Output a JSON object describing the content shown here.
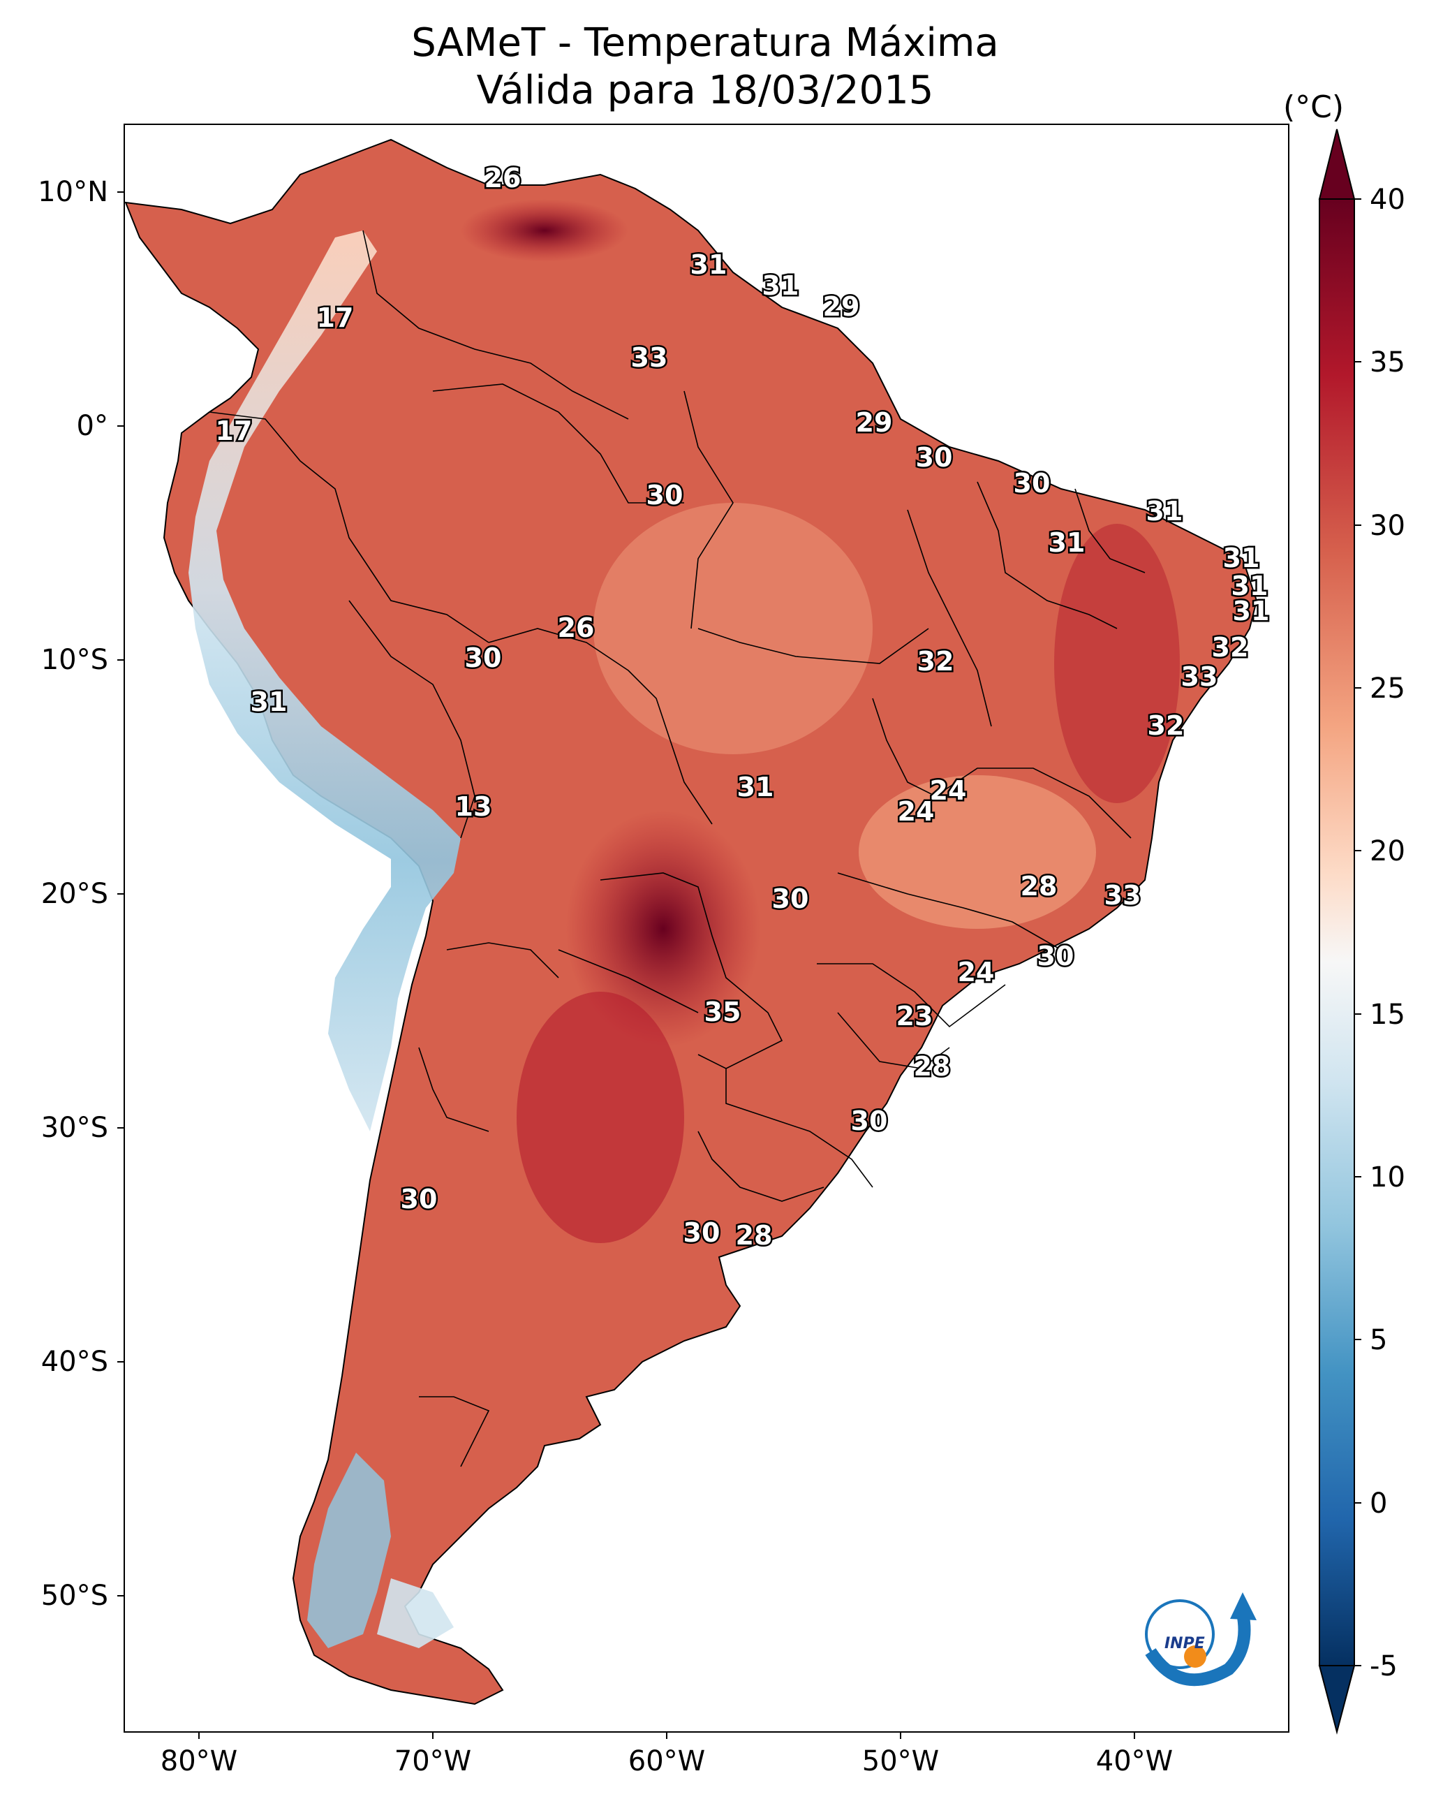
{
  "title_line1": "SAMeT - Temperatura Máxima",
  "title_line2": "Válida para 18/03/2015",
  "colorbar": {
    "unit": "(°C)",
    "min": -5,
    "max": 40,
    "ticks": [
      "40",
      "35",
      "30",
      "25",
      "20",
      "15",
      "10",
      "5",
      "0",
      "-5"
    ],
    "colors": [
      "#67001f",
      "#b2182b",
      "#d6604d",
      "#f4a582",
      "#fddbc7",
      "#f7f7f7",
      "#d1e5f0",
      "#92c5de",
      "#4393c3",
      "#2166ac",
      "#053061"
    ]
  },
  "axes": {
    "lat_labels": [
      "10°N",
      "0°",
      "10°S",
      "20°S",
      "30°S",
      "40°S",
      "50°S"
    ],
    "lon_labels": [
      "80°W",
      "70°W",
      "60°W",
      "50°W",
      "40°W"
    ]
  },
  "station_values": [
    "26",
    "31",
    "31",
    "29",
    "17",
    "33",
    "17",
    "29",
    "30",
    "30",
    "30",
    "31",
    "31",
    "31",
    "31",
    "31",
    "26",
    "30",
    "32",
    "32",
    "33",
    "31",
    "32",
    "24",
    "31",
    "24",
    "13",
    "28",
    "33",
    "30",
    "30",
    "24",
    "35",
    "23",
    "28",
    "30",
    "30",
    "30",
    "28"
  ],
  "logo_text": "INPE"
}
